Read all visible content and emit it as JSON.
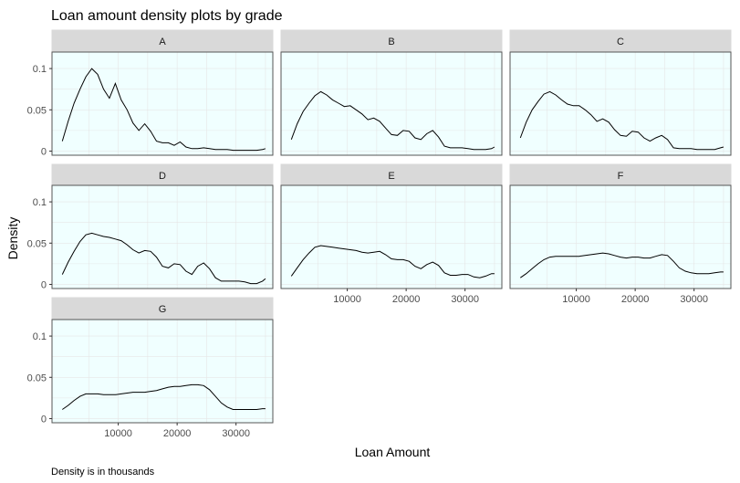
{
  "chart_data": {
    "type": "line",
    "title": "Loan amount density plots by grade",
    "xlabel": "Loan Amount",
    "ylabel": "Density",
    "caption": "Density is in thousands",
    "xlim": [
      -1250,
      36250
    ],
    "ylim": [
      -0.005,
      0.12
    ],
    "xticks": [
      10000,
      20000,
      30000
    ],
    "xtick_labels": [
      "10000",
      "20000",
      "30000"
    ],
    "yticks": [
      0,
      0.05,
      0.1
    ],
    "ytick_labels": [
      "0",
      "0.05",
      "0.1"
    ],
    "grid": true,
    "panel_background": "#F0FFFF",
    "strip_background": "#D9D9D9",
    "line_color": "#000000",
    "series": [
      {
        "name": "A",
        "x": [
          500,
          1500,
          2500,
          3500,
          4500,
          5500,
          6500,
          7500,
          8500,
          9500,
          10500,
          11500,
          12500,
          13500,
          14500,
          15500,
          16500,
          17500,
          18500,
          19500,
          20500,
          21500,
          22500,
          23500,
          24500,
          25500,
          26500,
          27500,
          28500,
          29500,
          30500,
          31500,
          32500,
          33500,
          34500,
          35000
        ],
        "y": [
          0.012,
          0.036,
          0.058,
          0.075,
          0.09,
          0.1,
          0.093,
          0.075,
          0.064,
          0.082,
          0.062,
          0.05,
          0.034,
          0.025,
          0.033,
          0.024,
          0.012,
          0.01,
          0.01,
          0.007,
          0.011,
          0.005,
          0.003,
          0.003,
          0.004,
          0.003,
          0.002,
          0.002,
          0.002,
          0.001,
          0.001,
          0.001,
          0.001,
          0.001,
          0.002,
          0.003
        ]
      },
      {
        "name": "B",
        "x": [
          500,
          1500,
          2500,
          3500,
          4500,
          5500,
          6500,
          7500,
          8500,
          9500,
          10500,
          11500,
          12500,
          13500,
          14500,
          15500,
          16500,
          17500,
          18500,
          19500,
          20500,
          21500,
          22500,
          23500,
          24500,
          25500,
          26500,
          27500,
          28500,
          29500,
          30500,
          31500,
          32500,
          33500,
          34500,
          35000
        ],
        "y": [
          0.014,
          0.033,
          0.048,
          0.058,
          0.067,
          0.072,
          0.068,
          0.062,
          0.058,
          0.054,
          0.055,
          0.05,
          0.045,
          0.038,
          0.04,
          0.036,
          0.028,
          0.02,
          0.019,
          0.025,
          0.024,
          0.016,
          0.014,
          0.021,
          0.025,
          0.017,
          0.006,
          0.004,
          0.004,
          0.004,
          0.003,
          0.002,
          0.002,
          0.002,
          0.003,
          0.005
        ]
      },
      {
        "name": "C",
        "x": [
          500,
          1500,
          2500,
          3500,
          4500,
          5500,
          6500,
          7500,
          8500,
          9500,
          10500,
          11500,
          12500,
          13500,
          14500,
          15500,
          16500,
          17500,
          18500,
          19500,
          20500,
          21500,
          22500,
          23500,
          24500,
          25500,
          26500,
          27500,
          28500,
          29500,
          30500,
          31500,
          32500,
          33500,
          34500,
          35000
        ],
        "y": [
          0.016,
          0.035,
          0.05,
          0.06,
          0.069,
          0.072,
          0.068,
          0.062,
          0.057,
          0.055,
          0.055,
          0.05,
          0.044,
          0.036,
          0.039,
          0.035,
          0.026,
          0.019,
          0.018,
          0.024,
          0.023,
          0.016,
          0.012,
          0.016,
          0.019,
          0.014,
          0.004,
          0.003,
          0.003,
          0.003,
          0.002,
          0.002,
          0.002,
          0.002,
          0.004,
          0.005
        ]
      },
      {
        "name": "D",
        "x": [
          500,
          1500,
          2500,
          3500,
          4500,
          5500,
          6500,
          7500,
          8500,
          9500,
          10500,
          11500,
          12500,
          13500,
          14500,
          15500,
          16500,
          17500,
          18500,
          19500,
          20500,
          21500,
          22500,
          23500,
          24500,
          25500,
          26500,
          27500,
          28500,
          29500,
          30500,
          31500,
          32500,
          33500,
          34500,
          35000
        ],
        "y": [
          0.012,
          0.027,
          0.04,
          0.052,
          0.06,
          0.062,
          0.06,
          0.058,
          0.057,
          0.055,
          0.053,
          0.048,
          0.042,
          0.038,
          0.041,
          0.04,
          0.033,
          0.022,
          0.02,
          0.025,
          0.024,
          0.016,
          0.012,
          0.022,
          0.026,
          0.019,
          0.008,
          0.004,
          0.004,
          0.004,
          0.004,
          0.003,
          0.001,
          0.001,
          0.004,
          0.007
        ]
      },
      {
        "name": "E",
        "x": [
          500,
          1500,
          2500,
          3500,
          4500,
          5500,
          6500,
          7500,
          8500,
          9500,
          10500,
          11500,
          12500,
          13500,
          14500,
          15500,
          16500,
          17500,
          18500,
          19500,
          20500,
          21500,
          22500,
          23500,
          24500,
          25500,
          26500,
          27500,
          28500,
          29500,
          30500,
          31500,
          32500,
          33500,
          34500,
          35000
        ],
        "y": [
          0.01,
          0.02,
          0.03,
          0.038,
          0.045,
          0.047,
          0.046,
          0.045,
          0.044,
          0.043,
          0.042,
          0.041,
          0.039,
          0.038,
          0.039,
          0.04,
          0.036,
          0.031,
          0.03,
          0.03,
          0.028,
          0.022,
          0.019,
          0.024,
          0.027,
          0.023,
          0.014,
          0.011,
          0.011,
          0.012,
          0.012,
          0.009,
          0.008,
          0.01,
          0.013,
          0.013
        ]
      },
      {
        "name": "F",
        "x": [
          500,
          1500,
          2500,
          3500,
          4500,
          5500,
          6500,
          7500,
          8500,
          9500,
          10500,
          11500,
          12500,
          13500,
          14500,
          15500,
          16500,
          17500,
          18500,
          19500,
          20500,
          21500,
          22500,
          23500,
          24500,
          25500,
          26500,
          27500,
          28500,
          29500,
          30500,
          31500,
          32500,
          33500,
          34500,
          35000
        ],
        "y": [
          0.008,
          0.013,
          0.019,
          0.025,
          0.03,
          0.033,
          0.034,
          0.034,
          0.034,
          0.034,
          0.034,
          0.035,
          0.036,
          0.037,
          0.038,
          0.037,
          0.035,
          0.033,
          0.032,
          0.033,
          0.033,
          0.032,
          0.032,
          0.034,
          0.036,
          0.035,
          0.028,
          0.02,
          0.016,
          0.014,
          0.013,
          0.013,
          0.013,
          0.014,
          0.015,
          0.015
        ]
      },
      {
        "name": "G",
        "x": [
          500,
          1500,
          2500,
          3500,
          4500,
          5500,
          6500,
          7500,
          8500,
          9500,
          10500,
          11500,
          12500,
          13500,
          14500,
          15500,
          16500,
          17500,
          18500,
          19500,
          20500,
          21500,
          22500,
          23500,
          24500,
          25500,
          26500,
          27500,
          28500,
          29500,
          30500,
          31500,
          32500,
          33500,
          34500,
          35000
        ],
        "y": [
          0.011,
          0.016,
          0.022,
          0.027,
          0.03,
          0.03,
          0.03,
          0.029,
          0.029,
          0.029,
          0.03,
          0.031,
          0.032,
          0.032,
          0.032,
          0.033,
          0.034,
          0.036,
          0.038,
          0.039,
          0.039,
          0.04,
          0.041,
          0.041,
          0.04,
          0.035,
          0.027,
          0.019,
          0.014,
          0.011,
          0.011,
          0.011,
          0.011,
          0.011,
          0.012,
          0.012
        ]
      }
    ]
  }
}
